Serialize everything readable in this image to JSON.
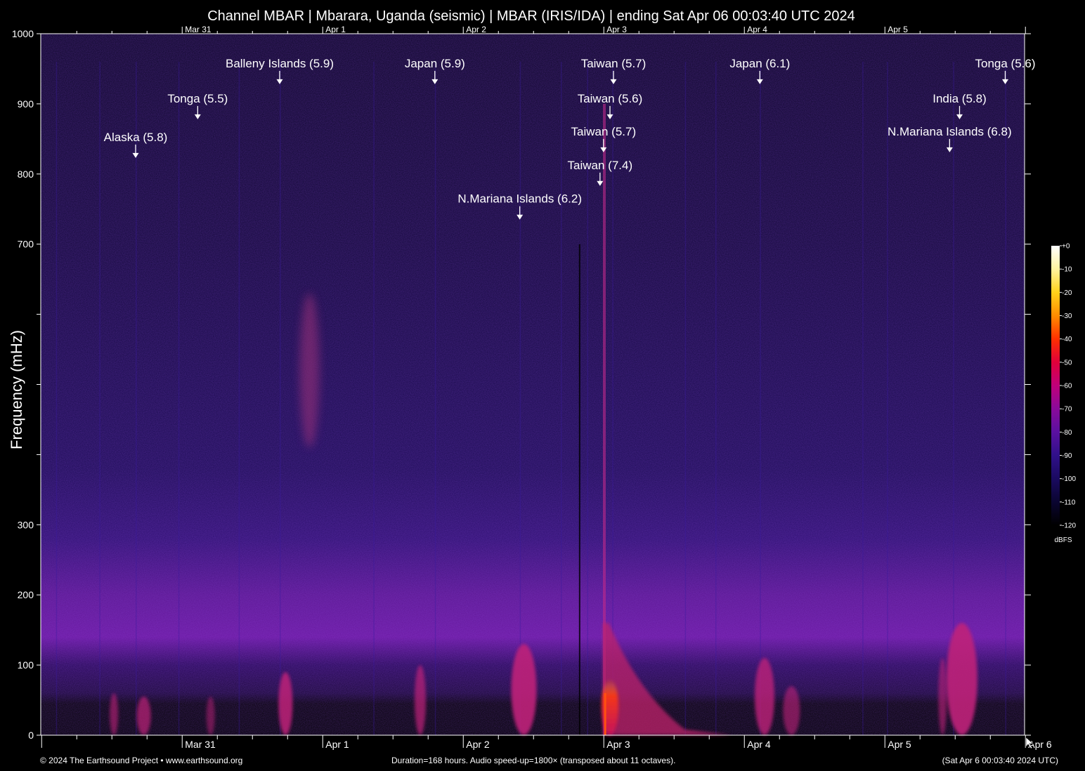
{
  "chart_data": {
    "type": "heatmap",
    "title": "Channel MBAR | Mbarara, Uganda (seismic) | MBAR (IRIS/IDA) | ending Sat Apr 06 00:03:40 UTC 2024",
    "ylabel": "Frequency (mHz)",
    "xlabel": "",
    "ylim": [
      0,
      1000
    ],
    "xlim_hours": [
      0,
      168
    ],
    "yticks": [
      {
        "value": 0,
        "label": "0"
      },
      {
        "value": 100,
        "label": "100"
      },
      {
        "value": 200,
        "label": "200"
      },
      {
        "value": 300,
        "label": "300"
      },
      {
        "value": 400,
        "label": ""
      },
      {
        "value": 500,
        "label": ""
      },
      {
        "value": 600,
        "label": ""
      },
      {
        "value": 700,
        "label": "700"
      },
      {
        "value": 800,
        "label": "800"
      },
      {
        "value": 900,
        "label": "900"
      },
      {
        "value": 1000,
        "label": "1000"
      }
    ],
    "day_labels": [
      {
        "label": "Mar 31",
        "hour": 24.15
      },
      {
        "label": "Apr 1",
        "hour": 48.15
      },
      {
        "label": "Apr 2",
        "hour": 72.15
      },
      {
        "label": "Apr 3",
        "hour": 96.15
      },
      {
        "label": "Apr 4",
        "hour": 120.15
      },
      {
        "label": "Apr 5",
        "hour": 144.15
      },
      {
        "label": "Apr 6",
        "hour": 168.15
      }
    ],
    "colorbar": {
      "unit": "dBFS",
      "ticks": [
        "+0",
        "-10",
        "-20",
        "-30",
        "-40",
        "-50",
        "-60",
        "-70",
        "-80",
        "-90",
        "-100",
        "-110",
        "-120"
      ],
      "colors": [
        "#ffffff",
        "#fff3a0",
        "#ffd21a",
        "#ff8c00",
        "#ff3000",
        "#e0003a",
        "#c0007a",
        "#8a0a9a",
        "#5a10a0",
        "#30108a",
        "#1a0a60",
        "#0a0530",
        "#000000"
      ]
    },
    "events": [
      {
        "label": "Alaska (5.8)",
        "hour": 16.2,
        "freq": 830
      },
      {
        "label": "Tonga (5.5)",
        "hour": 26.8,
        "freq": 885
      },
      {
        "label": "Balleny Islands (5.9)",
        "hour": 40.8,
        "freq": 935
      },
      {
        "label": "Japan (5.9)",
        "hour": 67.3,
        "freq": 935
      },
      {
        "label": "N.Mariana Islands (6.2)",
        "hour": 81.8,
        "freq": 742
      },
      {
        "label": "Taiwan (7.4)",
        "hour": 95.5,
        "freq": 790
      },
      {
        "label": "Taiwan (5.7)",
        "hour": 96.1,
        "freq": 838
      },
      {
        "label": "Taiwan (5.6)",
        "hour": 97.2,
        "freq": 885
      },
      {
        "label": "Taiwan (5.7)",
        "hour": 97.8,
        "freq": 935
      },
      {
        "label": "Japan (6.1)",
        "hour": 122.8,
        "freq": 935
      },
      {
        "label": "N.Mariana Islands (6.8)",
        "hour": 155.2,
        "freq": 838
      },
      {
        "label": "India (5.8)",
        "hour": 156.9,
        "freq": 885
      },
      {
        "label": "Tonga (5.6)",
        "hour": 164.7,
        "freq": 935
      }
    ]
  },
  "footer": {
    "copyright": "© 2024 The Earthsound Project • www.earthsound.org",
    "duration": "Duration=168 hours. Audio speed-up=1800× (transposed about 11 octaves).",
    "timestamp": "(Sat Apr  6 00:03:40 2024 UTC)"
  }
}
